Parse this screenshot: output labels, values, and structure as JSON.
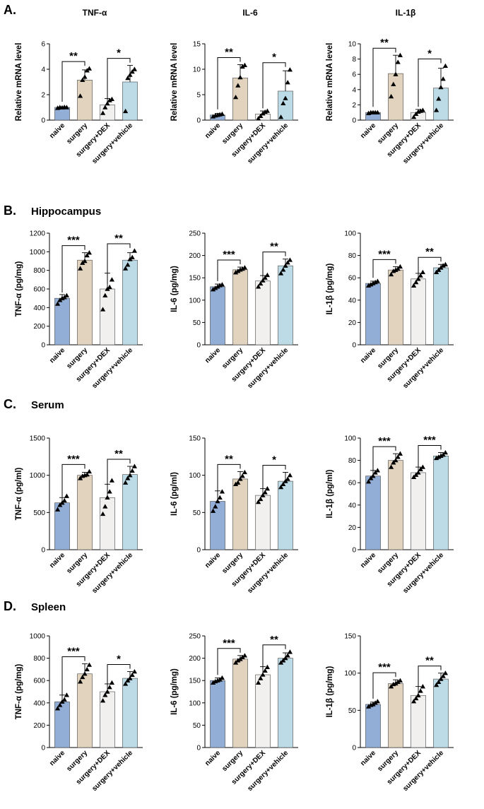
{
  "panels": [
    {
      "label": "A.",
      "region": ""
    },
    {
      "label": "B.",
      "region": "Hippocampus"
    },
    {
      "label": "C.",
      "region": "Serum"
    },
    {
      "label": "D.",
      "region": "Spleen"
    }
  ],
  "categories": [
    "naive",
    "surgery",
    "surgery+DEX",
    "surgery+vehicle"
  ],
  "colors": {
    "naive": "#93aed6",
    "surgery": "#e2d3be",
    "surgery+DEX": "#f2f0ee",
    "surgery+vehicle": "#bcdbe6",
    "edge": "#444444",
    "point": "#000000"
  },
  "chart_data": [
    {
      "type": "bar",
      "panel": "A.",
      "title": "TNF-α",
      "ylabel": "Relative mRNA level",
      "ylim": [
        0,
        6
      ],
      "yticks": [
        0,
        2,
        4,
        6
      ],
      "categories": [
        "naive",
        "surgery",
        "surgery+DEX",
        "surgery+vehicle"
      ],
      "values": [
        1.0,
        3.15,
        1.2,
        3.0
      ],
      "errors": [
        0.05,
        0.8,
        0.5,
        1.3
      ],
      "points": [
        [
          0.95,
          1.0,
          0.98,
          1.02,
          1.0
        ],
        [
          1.9,
          3.15,
          3.4,
          3.9,
          4.05
        ],
        [
          0.55,
          1.0,
          1.3,
          1.55,
          1.65
        ],
        [
          0.7,
          3.3,
          3.55,
          3.8,
          4.0
        ]
      ],
      "significance": [
        {
          "pair": [
            0,
            1
          ],
          "label": "**"
        },
        {
          "pair": [
            2,
            3
          ],
          "label": "*"
        }
      ]
    },
    {
      "type": "bar",
      "panel": "A.",
      "title": "IL-6",
      "ylabel": "Relative mRNA level",
      "ylim": [
        0,
        15
      ],
      "yticks": [
        0,
        5,
        10,
        15
      ],
      "categories": [
        "naive",
        "surgery",
        "surgery+DEX",
        "surgery+vehicle"
      ],
      "values": [
        1.0,
        8.3,
        1.2,
        5.7
      ],
      "errors": [
        0.3,
        2.6,
        0.6,
        4.0
      ],
      "points": [
        [
          0.7,
          0.9,
          1.0,
          1.1,
          1.2
        ],
        [
          4.5,
          6.8,
          8.4,
          10.5,
          10.8
        ],
        [
          0.3,
          0.8,
          1.3,
          1.6,
          1.8
        ],
        [
          0.6,
          3.3,
          4.3,
          7.4,
          9.9
        ]
      ],
      "significance": [
        {
          "pair": [
            0,
            1
          ],
          "label": "**"
        },
        {
          "pair": [
            2,
            3
          ],
          "label": "*"
        }
      ]
    },
    {
      "type": "bar",
      "panel": "A.",
      "title": "IL-1β",
      "ylabel": "Relative mRNA level",
      "ylim": [
        0,
        10
      ],
      "yticks": [
        0,
        2,
        4,
        6,
        8,
        10
      ],
      "categories": [
        "naive",
        "surgery",
        "surgery+DEX",
        "surgery+vehicle"
      ],
      "values": [
        1.0,
        6.1,
        1.0,
        4.2
      ],
      "errors": [
        0.1,
        2.4,
        0.4,
        2.6
      ],
      "points": [
        [
          0.9,
          1.0,
          1.0,
          1.0,
          1.0
        ],
        [
          3.1,
          4.7,
          6.0,
          7.6,
          8.5
        ],
        [
          0.4,
          0.8,
          1.1,
          1.2,
          1.3
        ],
        [
          1.3,
          2.8,
          4.3,
          5.4,
          7.1
        ]
      ],
      "significance": [
        {
          "pair": [
            0,
            1
          ],
          "label": "**"
        },
        {
          "pair": [
            2,
            3
          ],
          "label": "*"
        }
      ]
    },
    {
      "type": "bar",
      "panel": "B.",
      "title": "",
      "ylabel": "TNF-α (pg/mg)",
      "ylim": [
        0,
        1200
      ],
      "yticks": [
        0,
        200,
        400,
        600,
        800,
        1000,
        1200
      ],
      "categories": [
        "naive",
        "surgery",
        "surgery+DEX",
        "surgery+vehicle"
      ],
      "values": [
        500,
        910,
        600,
        910
      ],
      "errors": [
        40,
        80,
        170,
        80
      ],
      "points": [
        [
          440,
          480,
          500,
          510,
          530
        ],
        [
          820,
          880,
          900,
          960,
          990
        ],
        [
          380,
          530,
          600,
          620,
          700
        ],
        [
          820,
          860,
          920,
          940,
          1010
        ]
      ],
      "significance": [
        {
          "pair": [
            0,
            1
          ],
          "label": "***"
        },
        {
          "pair": [
            2,
            3
          ],
          "label": "**"
        }
      ]
    },
    {
      "type": "bar",
      "panel": "B.",
      "title": "",
      "ylabel": "IL-6 (pg/mg)",
      "ylim": [
        0,
        250
      ],
      "yticks": [
        0,
        50,
        100,
        150,
        200,
        250
      ],
      "categories": [
        "naive",
        "surgery",
        "surgery+DEX",
        "surgery+vehicle"
      ],
      "values": [
        130,
        168,
        143,
        177
      ],
      "errors": [
        6,
        6,
        12,
        15
      ],
      "points": [
        [
          124,
          127,
          130,
          133,
          135
        ],
        [
          162,
          165,
          168,
          170,
          173
        ],
        [
          130,
          137,
          144,
          150,
          156
        ],
        [
          160,
          168,
          177,
          184,
          190
        ]
      ],
      "significance": [
        {
          "pair": [
            0,
            1
          ],
          "label": "***"
        },
        {
          "pair": [
            2,
            3
          ],
          "label": "**"
        }
      ]
    },
    {
      "type": "bar",
      "panel": "B.",
      "title": "",
      "ylabel": "IL-1β (pg/mg)",
      "ylim": [
        0,
        100
      ],
      "yticks": [
        0,
        20,
        40,
        60,
        80,
        100
      ],
      "categories": [
        "naive",
        "surgery",
        "surgery+DEX",
        "surgery+vehicle"
      ],
      "values": [
        55,
        67,
        59,
        69
      ],
      "errors": [
        2,
        3,
        5,
        3
      ],
      "points": [
        [
          53,
          54,
          55,
          56,
          57
        ],
        [
          63,
          66,
          67,
          68,
          70
        ],
        [
          53,
          56,
          59,
          62,
          65
        ],
        [
          65,
          67,
          69,
          71,
          72
        ]
      ],
      "significance": [
        {
          "pair": [
            0,
            1
          ],
          "label": "***"
        },
        {
          "pair": [
            2,
            3
          ],
          "label": "**"
        }
      ]
    },
    {
      "type": "bar",
      "panel": "C.",
      "title": "",
      "ylabel": "TNF-α (pg/ml)",
      "ylim": [
        0,
        1500
      ],
      "yticks": [
        0,
        500,
        1000,
        1500
      ],
      "categories": [
        "naive",
        "surgery",
        "surgery+DEX",
        "surgery+vehicle"
      ],
      "values": [
        630,
        1000,
        700,
        1010
      ],
      "errors": [
        70,
        40,
        180,
        110
      ],
      "points": [
        [
          540,
          600,
          630,
          660,
          720
        ],
        [
          960,
          990,
          1000,
          1010,
          1050
        ],
        [
          480,
          580,
          700,
          780,
          930
        ],
        [
          900,
          960,
          1000,
          1060,
          1120
        ]
      ],
      "significance": [
        {
          "pair": [
            0,
            1
          ],
          "label": "***"
        },
        {
          "pair": [
            2,
            3
          ],
          "label": "**"
        }
      ]
    },
    {
      "type": "bar",
      "panel": "C.",
      "title": "",
      "ylabel": "IL-6 (pg/ml)",
      "ylim": [
        0,
        150
      ],
      "yticks": [
        0,
        50,
        100,
        150
      ],
      "categories": [
        "naive",
        "surgery",
        "surgery+DEX",
        "surgery+vehicle"
      ],
      "values": [
        65,
        95,
        73,
        92
      ],
      "errors": [
        14,
        10,
        9,
        12
      ],
      "points": [
        [
          52,
          58,
          65,
          70,
          78
        ],
        [
          88,
          90,
          95,
          99,
          104
        ],
        [
          64,
          68,
          73,
          77,
          82
        ],
        [
          84,
          88,
          92,
          95,
          100
        ]
      ],
      "significance": [
        {
          "pair": [
            0,
            1
          ],
          "label": "**"
        },
        {
          "pair": [
            2,
            3
          ],
          "label": "*"
        }
      ]
    },
    {
      "type": "bar",
      "panel": "C.",
      "title": "",
      "ylabel": "IL-1β (pg/ml)",
      "ylim": [
        0,
        100
      ],
      "yticks": [
        0,
        20,
        40,
        60,
        80,
        100
      ],
      "categories": [
        "naive",
        "surgery",
        "surgery+DEX",
        "surgery+vehicle"
      ],
      "values": [
        66,
        80,
        69,
        84
      ],
      "errors": [
        5,
        6,
        5,
        3
      ],
      "points": [
        [
          61,
          64,
          66,
          69,
          71
        ],
        [
          74,
          78,
          80,
          83,
          86
        ],
        [
          65,
          67,
          69,
          72,
          74
        ],
        [
          82,
          83,
          84,
          85,
          87
        ]
      ],
      "significance": [
        {
          "pair": [
            0,
            1
          ],
          "label": "***"
        },
        {
          "pair": [
            2,
            3
          ],
          "label": "***"
        }
      ]
    },
    {
      "type": "bar",
      "panel": "D.",
      "title": "",
      "ylabel": "TNF-α (pg/mg)",
      "ylim": [
        0,
        1000
      ],
      "yticks": [
        0,
        200,
        400,
        600,
        800,
        1000
      ],
      "categories": [
        "naive",
        "surgery",
        "surgery+DEX",
        "surgery+vehicle"
      ],
      "values": [
        410,
        660,
        500,
        620
      ],
      "errors": [
        60,
        90,
        70,
        60
      ],
      "points": [
        [
          350,
          380,
          410,
          430,
          470
        ],
        [
          590,
          630,
          660,
          700,
          740
        ],
        [
          420,
          470,
          500,
          540,
          580
        ],
        [
          570,
          600,
          620,
          650,
          680
        ]
      ],
      "significance": [
        {
          "pair": [
            0,
            1
          ],
          "label": "***"
        },
        {
          "pair": [
            2,
            3
          ],
          "label": "*"
        }
      ]
    },
    {
      "type": "bar",
      "panel": "D.",
      "title": "",
      "ylabel": "IL-6 (pg/mg)",
      "ylim": [
        0,
        250
      ],
      "yticks": [
        0,
        50,
        100,
        150,
        200,
        250
      ],
      "categories": [
        "naive",
        "surgery",
        "surgery+DEX",
        "surgery+vehicle"
      ],
      "values": [
        150,
        198,
        163,
        200
      ],
      "errors": [
        6,
        8,
        18,
        12
      ],
      "points": [
        [
          145,
          148,
          150,
          152,
          156
        ],
        [
          190,
          195,
          198,
          202,
          206
        ],
        [
          145,
          155,
          163,
          172,
          180
        ],
        [
          190,
          195,
          200,
          206,
          214
        ]
      ],
      "significance": [
        {
          "pair": [
            0,
            1
          ],
          "label": "***"
        },
        {
          "pair": [
            2,
            3
          ],
          "label": "**"
        }
      ]
    },
    {
      "type": "bar",
      "panel": "D.",
      "title": "",
      "ylabel": "IL-1β (pg/mg)",
      "ylim": [
        0,
        150
      ],
      "yticks": [
        0,
        50,
        100,
        150
      ],
      "categories": [
        "naive",
        "surgery",
        "surgery+DEX",
        "surgery+vehicle"
      ],
      "values": [
        58,
        86,
        70,
        92
      ],
      "errors": [
        3,
        5,
        12,
        8
      ],
      "points": [
        [
          55,
          57,
          58,
          60,
          62
        ],
        [
          82,
          85,
          86,
          88,
          90
        ],
        [
          62,
          66,
          70,
          76,
          82
        ],
        [
          84,
          88,
          92,
          96,
          100
        ]
      ],
      "significance": [
        {
          "pair": [
            0,
            1
          ],
          "label": "***"
        },
        {
          "pair": [
            2,
            3
          ],
          "label": "**"
        }
      ]
    }
  ]
}
